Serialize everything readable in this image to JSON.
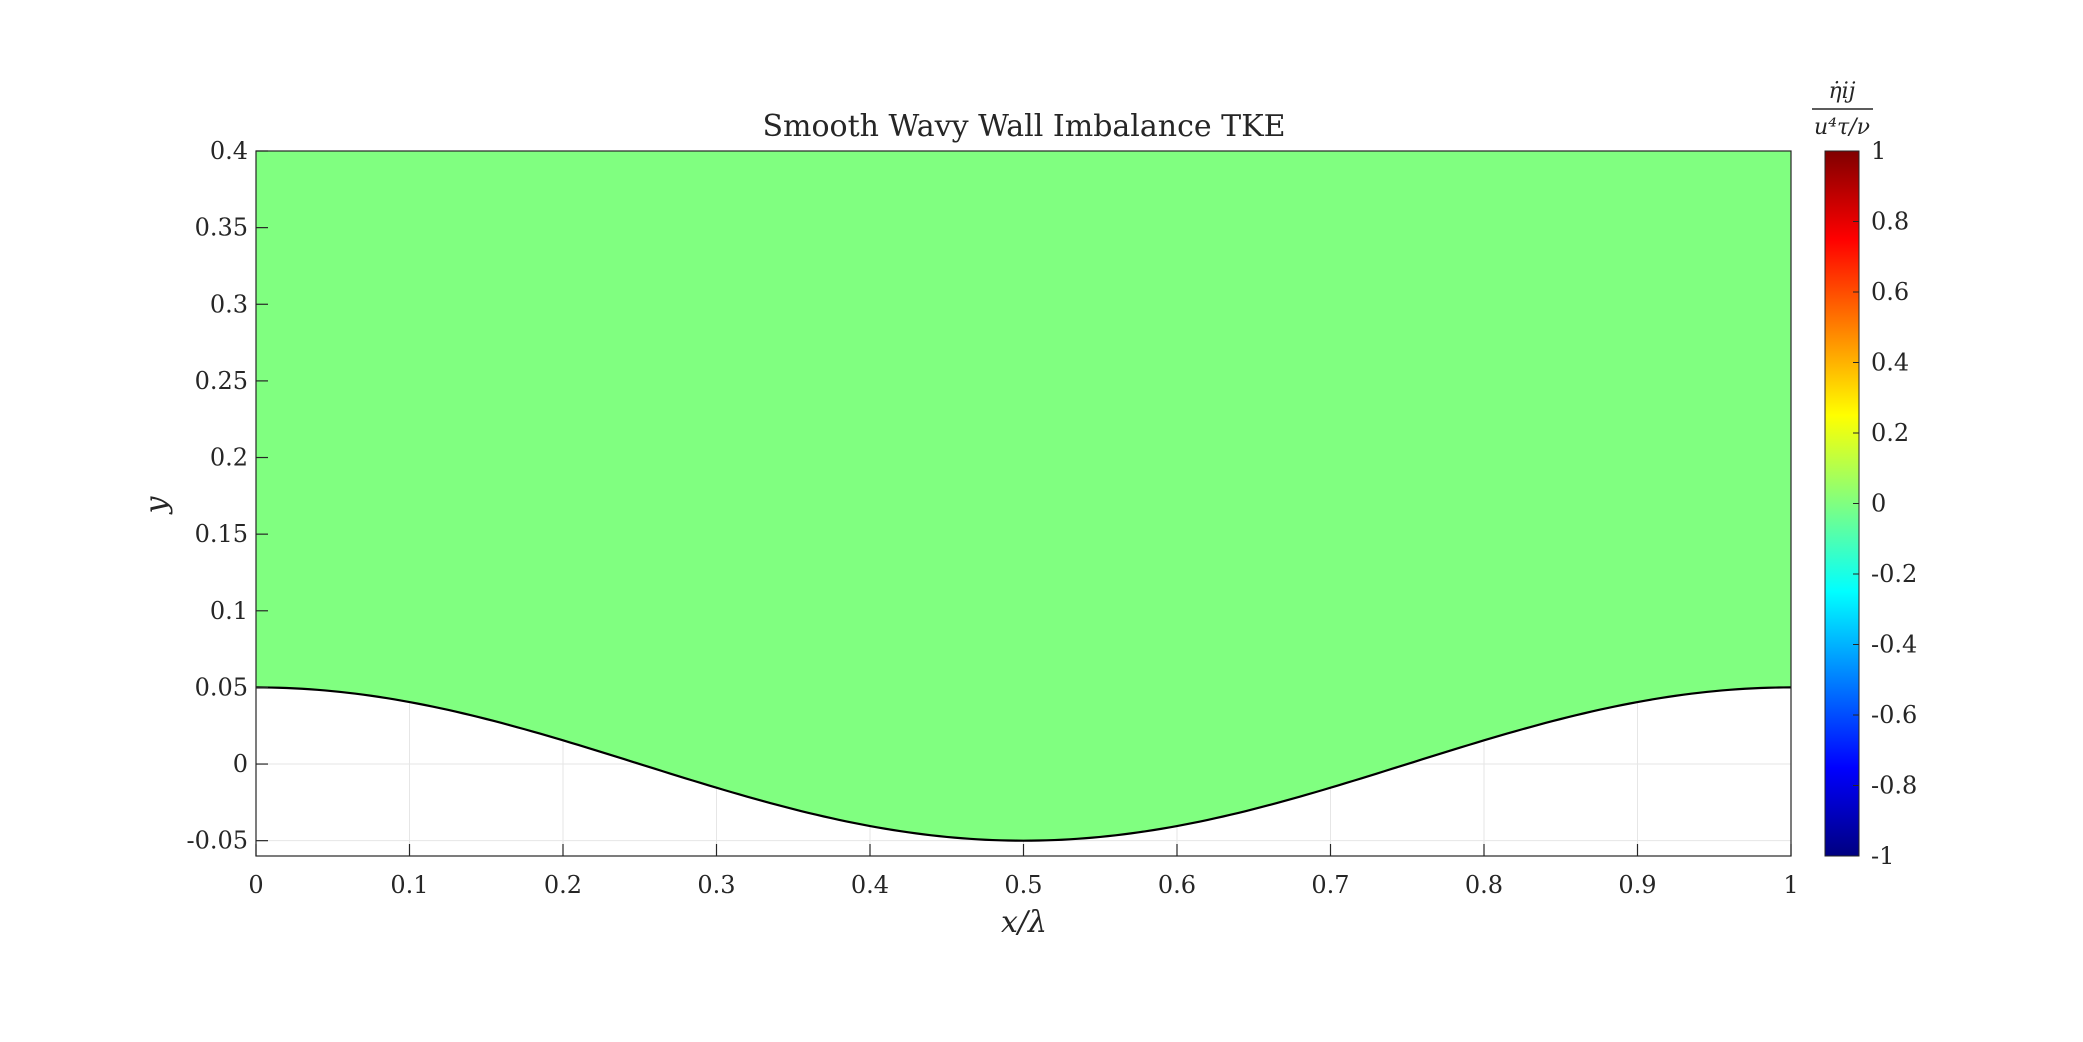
{
  "chart_data": {
    "type": "heatmap",
    "title": "Smooth Wavy Wall Imbalance TKE",
    "xlabel": "x/λ",
    "ylabel": "y",
    "xlim": [
      0,
      1
    ],
    "ylim": [
      -0.06,
      0.4
    ],
    "x_ticks": [
      0,
      0.1,
      0.2,
      0.3,
      0.4,
      0.5,
      0.6,
      0.7,
      0.8,
      0.9,
      1
    ],
    "x_tick_labels": [
      "0",
      "0.1",
      "0.2",
      "0.3",
      "0.4",
      "0.5",
      "0.6",
      "0.7",
      "0.8",
      "0.9",
      "1"
    ],
    "y_ticks": [
      -0.05,
      0,
      0.05,
      0.1,
      0.15,
      0.2,
      0.25,
      0.3,
      0.35,
      0.4
    ],
    "y_tick_labels": [
      "-0.05",
      "0",
      "0.05",
      "0.1",
      "0.15",
      "0.2",
      "0.25",
      "0.3",
      "0.35",
      "0.4"
    ],
    "grid": true,
    "field": {
      "value": 0,
      "color": "#80ff80",
      "note_region": "uniform field above wall"
    },
    "wall": {
      "amplitude": 0.05,
      "shape": "cosine",
      "x": [
        0,
        0.05,
        0.1,
        0.15,
        0.2,
        0.25,
        0.3,
        0.35,
        0.4,
        0.45,
        0.5,
        0.55,
        0.6,
        0.65,
        0.7,
        0.75,
        0.8,
        0.85,
        0.9,
        0.95,
        1
      ],
      "y": [
        0.05,
        0.0476,
        0.0405,
        0.0294,
        0.0155,
        0.0,
        -0.0155,
        -0.0294,
        -0.0405,
        -0.0476,
        -0.05,
        -0.0476,
        -0.0405,
        -0.0294,
        -0.0155,
        0.0,
        0.0155,
        0.0294,
        0.0405,
        0.0476,
        0.05
      ],
      "color": "#000000"
    },
    "colorbar": {
      "colormap": "jet",
      "limits": [
        -1,
        1
      ],
      "ticks": [
        1,
        0.8,
        0.6,
        0.4,
        0.2,
        0,
        -0.2,
        -0.4,
        -0.6,
        -0.8,
        -1
      ],
      "tick_labels": [
        "1",
        "0.8",
        "0.6",
        "0.4",
        "0.2",
        "0",
        "-0.2",
        "-0.4",
        "-0.6",
        "-0.8",
        "-1"
      ],
      "label_numerator": "η̇ij",
      "label_denominator": "u⁴τ/ν"
    }
  }
}
